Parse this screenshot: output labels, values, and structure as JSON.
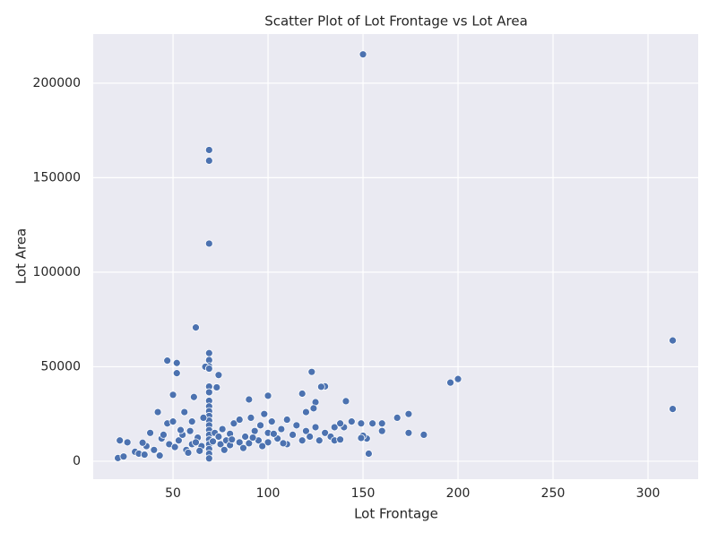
{
  "chart_data": {
    "type": "scatter",
    "title": "Scatter Plot of Lot Frontage vs Lot Area",
    "x_label": "Lot Frontage",
    "y_label": "Lot Area",
    "color": "#4c72b0",
    "grid": true,
    "xlim": [
      8,
      326.4
    ],
    "ylim": [
      -9500,
      226000
    ],
    "xticks": [
      50,
      100,
      150,
      200,
      250,
      300
    ],
    "yticks": [
      0,
      50000,
      100000,
      150000,
      200000
    ],
    "x": [
      150,
      69,
      69,
      69,
      313,
      313,
      62,
      47,
      52,
      52,
      69,
      69,
      69,
      67,
      69,
      74,
      73,
      69,
      69,
      69,
      69,
      69,
      69,
      69,
      69,
      69,
      69,
      69,
      69,
      69,
      69,
      69,
      90,
      100,
      61,
      50,
      123,
      130,
      128,
      118,
      141,
      125,
      124,
      196,
      200,
      174,
      160,
      182,
      174,
      160,
      153,
      152,
      150,
      149,
      168,
      155,
      144,
      149,
      140,
      135,
      42,
      56,
      47,
      50,
      21,
      24,
      22,
      26,
      30,
      32,
      35,
      36,
      40,
      43,
      44,
      48,
      51,
      53,
      55,
      57,
      59,
      60,
      60,
      63,
      65,
      66,
      71,
      72,
      75,
      76,
      78,
      80,
      80,
      82,
      85,
      85,
      88,
      90,
      91,
      93,
      95,
      96,
      98,
      100,
      100,
      102,
      105,
      107,
      110,
      110,
      113,
      115,
      118,
      120,
      120,
      122,
      125,
      127,
      130,
      133,
      135,
      138,
      138,
      34,
      38,
      45,
      54,
      58,
      62,
      64,
      74,
      77,
      81,
      87,
      92,
      97,
      103,
      108
    ],
    "values": [
      215245,
      164660,
      159000,
      115149,
      63887,
      27650,
      70761,
      53227,
      51974,
      46589,
      57200,
      53504,
      50271,
      50000,
      49000,
      45600,
      39104,
      39500,
      36500,
      32000,
      29000,
      26500,
      24000,
      21500,
      19000,
      16500,
      14000,
      11500,
      9000,
      6500,
      4000,
      1500,
      32668,
      34650,
      33983,
      35133,
      47280,
      39600,
      39384,
      35760,
      31770,
      31250,
      28000,
      41600,
      43500,
      25000,
      20000,
      14000,
      15000,
      16000,
      4000,
      12000,
      13500,
      12300,
      23000,
      20000,
      21000,
      20000,
      18000,
      18000,
      26000,
      26000,
      20000,
      21000,
      1700,
      2500,
      11000,
      10000,
      5000,
      4000,
      3500,
      8000,
      6000,
      3000,
      12000,
      9000,
      7500,
      11000,
      14000,
      6000,
      16000,
      21000,
      9000,
      12500,
      8000,
      23000,
      10500,
      15000,
      9000,
      17000,
      11000,
      8500,
      14500,
      20000,
      10000,
      22000,
      13000,
      9500,
      23000,
      16000,
      11000,
      19000,
      25000,
      10000,
      15000,
      21000,
      12000,
      17000,
      9000,
      22000,
      14000,
      19000,
      11000,
      26000,
      16000,
      13000,
      18000,
      11000,
      15000,
      13000,
      11000,
      20000,
      11500,
      9800,
      15000,
      14000,
      16500,
      4500,
      10000,
      5500,
      13000,
      6000,
      11500,
      7000,
      12500,
      8000,
      14500,
      9500
    ]
  }
}
